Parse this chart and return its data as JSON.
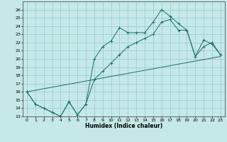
{
  "xlabel": "Humidex (Indice chaleur)",
  "xlim": [
    -0.5,
    23.5
  ],
  "ylim": [
    13,
    27
  ],
  "yticks": [
    13,
    14,
    15,
    16,
    17,
    18,
    19,
    20,
    21,
    22,
    23,
    24,
    25,
    26
  ],
  "xticks": [
    0,
    1,
    2,
    3,
    4,
    5,
    6,
    7,
    8,
    9,
    10,
    11,
    12,
    13,
    14,
    15,
    16,
    17,
    18,
    19,
    20,
    21,
    22,
    23
  ],
  "background_color": "#c5e8e8",
  "line_color": "#1a7068",
  "grid_color": "#9fcece",
  "line1_x": [
    0,
    1,
    2,
    3,
    4,
    5,
    6,
    7,
    8,
    9,
    10,
    11,
    12,
    13,
    14,
    15,
    16,
    17,
    18,
    19,
    20,
    21,
    22,
    23
  ],
  "line1_y": [
    16,
    14.5,
    14.0,
    13.5,
    13.0,
    14.8,
    13.2,
    14.5,
    20.0,
    21.5,
    22.2,
    23.8,
    23.2,
    23.2,
    23.2,
    24.5,
    26.0,
    25.2,
    24.3,
    23.5,
    20.3,
    22.3,
    21.8,
    20.5
  ],
  "line2_x": [
    0,
    1,
    2,
    3,
    4,
    5,
    6,
    7,
    8,
    9,
    10,
    11,
    12,
    13,
    14,
    15,
    16,
    17,
    18,
    19,
    20,
    21,
    22,
    23
  ],
  "line2_y": [
    16,
    14.5,
    14.0,
    13.5,
    13.0,
    14.8,
    13.2,
    14.5,
    17.5,
    18.5,
    19.5,
    20.5,
    21.5,
    22.0,
    22.5,
    23.0,
    24.5,
    24.8,
    23.5,
    23.5,
    20.3,
    21.5,
    22.0,
    20.5
  ],
  "line3_x": [
    0,
    23
  ],
  "line3_y": [
    16,
    20.3
  ]
}
